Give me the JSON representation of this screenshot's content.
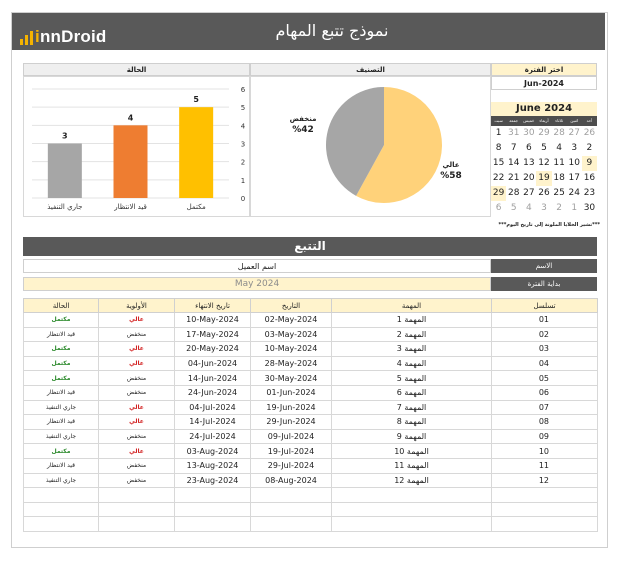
{
  "header": {
    "title": "نموذج تتبع المهام",
    "logo_prefix": "i",
    "logo_text": "nnDroid"
  },
  "panels": {
    "status_title": "الحالة",
    "classification_title": "التصنيف"
  },
  "period": {
    "label": "اختر الفترة",
    "value": "Jun-2024"
  },
  "calendar": {
    "title": "June 2024",
    "day_headers": [
      "سبت",
      "جمعة",
      "خميس",
      "أربعاء",
      "ثلاثاء",
      "اثنين",
      "أحد"
    ],
    "rows": [
      [
        {
          "d": "1"
        },
        {
          "d": "31",
          "o": 1
        },
        {
          "d": "30",
          "o": 1
        },
        {
          "d": "29",
          "o": 1
        },
        {
          "d": "28",
          "o": 1
        },
        {
          "d": "27",
          "o": 1
        },
        {
          "d": "26",
          "o": 1
        }
      ],
      [
        {
          "d": "8"
        },
        {
          "d": "7"
        },
        {
          "d": "6"
        },
        {
          "d": "5"
        },
        {
          "d": "4"
        },
        {
          "d": "3"
        },
        {
          "d": "2"
        }
      ],
      [
        {
          "d": "15"
        },
        {
          "d": "14"
        },
        {
          "d": "13"
        },
        {
          "d": "12"
        },
        {
          "d": "11"
        },
        {
          "d": "10"
        },
        {
          "d": "9",
          "s": 1
        }
      ],
      [
        {
          "d": "22"
        },
        {
          "d": "21"
        },
        {
          "d": "20"
        },
        {
          "d": "19",
          "s": 1
        },
        {
          "d": "18"
        },
        {
          "d": "17"
        },
        {
          "d": "16"
        }
      ],
      [
        {
          "d": "29",
          "s": 1
        },
        {
          "d": "28"
        },
        {
          "d": "27"
        },
        {
          "d": "26"
        },
        {
          "d": "25"
        },
        {
          "d": "24"
        },
        {
          "d": "23"
        }
      ],
      [
        {
          "d": "6",
          "o": 1
        },
        {
          "d": "5",
          "o": 1
        },
        {
          "d": "4",
          "o": 1
        },
        {
          "d": "3",
          "o": 1
        },
        {
          "d": "2",
          "o": 1
        },
        {
          "d": "1",
          "o": 1
        },
        {
          "d": "30"
        }
      ]
    ],
    "note": "***تشير الخلايا الملونة إلى تاريخ اليوم***"
  },
  "chart_data": [
    {
      "type": "bar",
      "title": "الحالة",
      "categories": [
        "جاري التنفيذ",
        "قيد الانتظار",
        "مكتمل"
      ],
      "values": [
        3,
        4,
        5
      ],
      "colors": [
        "#a6a6a6",
        "#ee7d31",
        "#ffc000"
      ],
      "ylim": [
        0,
        6
      ],
      "yticks": [
        0,
        1,
        2,
        3,
        4,
        5,
        6
      ]
    },
    {
      "type": "pie",
      "title": "التصنيف",
      "categories": [
        "عالي",
        "منخفض"
      ],
      "values": [
        58,
        42
      ],
      "labels": [
        "%58",
        "%42"
      ],
      "colors": [
        "#ffd27a",
        "#a6a6a6"
      ]
    }
  ],
  "tracking": {
    "title": "التتبع",
    "name_label": "الاسم",
    "name_value": "اسم العميل",
    "start_label": "بداية الفترة",
    "start_value": "May 2024"
  },
  "table": {
    "headers": [
      "تسلسل",
      "المهمة",
      "التاريخ",
      "تاريخ الانتهاء",
      "الأولوية",
      "الحالة"
    ],
    "rows": [
      {
        "seq": "01",
        "task": "المهمة 1",
        "date": "02-May-2024",
        "due": "10-May-2024",
        "prio": "عالي",
        "status": "مكتمل"
      },
      {
        "seq": "02",
        "task": "المهمة 2",
        "date": "03-May-2024",
        "due": "17-May-2024",
        "prio": "منخفض",
        "status": "قيد الانتظار"
      },
      {
        "seq": "03",
        "task": "المهمة 3",
        "date": "10-May-2024",
        "due": "20-May-2024",
        "prio": "عالي",
        "status": "مكتمل"
      },
      {
        "seq": "04",
        "task": "المهمة 4",
        "date": "28-May-2024",
        "due": "04-Jun-2024",
        "prio": "عالي",
        "status": "مكتمل"
      },
      {
        "seq": "05",
        "task": "المهمة 5",
        "date": "30-May-2024",
        "due": "14-Jun-2024",
        "prio": "منخفض",
        "status": "مكتمل"
      },
      {
        "seq": "06",
        "task": "المهمة 6",
        "date": "01-Jun-2024",
        "due": "24-Jun-2024",
        "prio": "منخفض",
        "status": "قيد الانتظار"
      },
      {
        "seq": "07",
        "task": "المهمة 7",
        "date": "19-Jun-2024",
        "due": "04-Jul-2024",
        "prio": "عالي",
        "status": "جاري التنفيذ"
      },
      {
        "seq": "08",
        "task": "المهمة 8",
        "date": "29-Jun-2024",
        "due": "14-Jul-2024",
        "prio": "عالي",
        "status": "قيد الانتظار"
      },
      {
        "seq": "09",
        "task": "المهمة 9",
        "date": "09-Jul-2024",
        "due": "24-Jul-2024",
        "prio": "منخفض",
        "status": "جاري التنفيذ"
      },
      {
        "seq": "10",
        "task": "المهمة 10",
        "date": "19-Jul-2024",
        "due": "03-Aug-2024",
        "prio": "عالي",
        "status": "مكتمل"
      },
      {
        "seq": "11",
        "task": "المهمة 11",
        "date": "29-Jul-2024",
        "due": "13-Aug-2024",
        "prio": "منخفض",
        "status": "قيد الانتظار"
      },
      {
        "seq": "12",
        "task": "المهمة 12",
        "date": "08-Aug-2024",
        "due": "23-Aug-2024",
        "prio": "منخفض",
        "status": "جاري التنفيذ"
      },
      {
        "seq": "",
        "task": "",
        "date": "",
        "due": "",
        "prio": "",
        "status": ""
      },
      {
        "seq": "",
        "task": "",
        "date": "",
        "due": "",
        "prio": "",
        "status": ""
      },
      {
        "seq": "",
        "task": "",
        "date": "",
        "due": "",
        "prio": "",
        "status": ""
      }
    ]
  }
}
